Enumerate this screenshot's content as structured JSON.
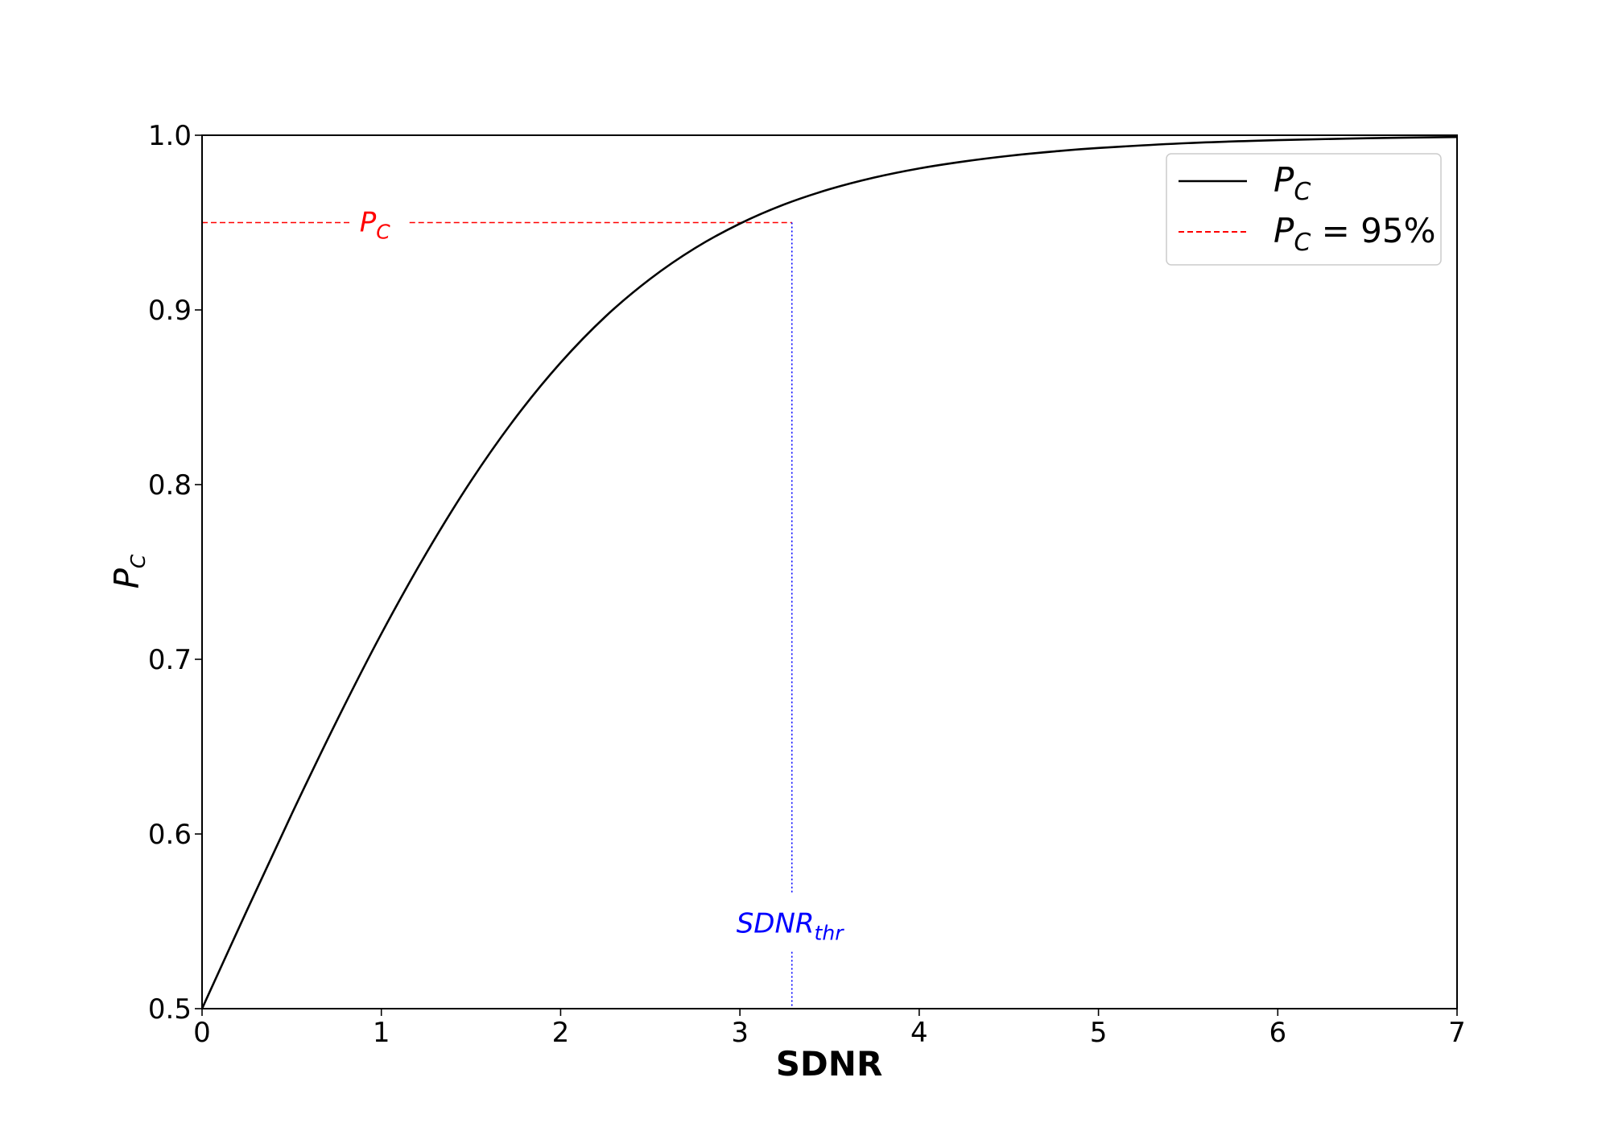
{
  "chart_data": {
    "type": "line",
    "xlabel": "SDNR",
    "ylabel": {
      "main": "P",
      "sub": "C"
    },
    "xlim": [
      0,
      7
    ],
    "ylim": [
      0.5,
      1.0
    ],
    "xticks": [
      "0",
      "1",
      "2",
      "3",
      "4",
      "5",
      "6",
      "7"
    ],
    "yticks": [
      "0.5",
      "0.6",
      "0.7",
      "0.8",
      "0.9",
      "1.0"
    ],
    "grid": false,
    "legend_placement": "top-right",
    "series": [
      {
        "legend_main": "P",
        "legend_sub": "C",
        "color": "#000000",
        "style": "solid",
        "x": [
          0,
          0.25,
          0.5,
          0.75,
          1.0,
          1.25,
          1.5,
          1.75,
          2.0,
          2.25,
          2.5,
          2.75,
          3.0,
          3.25,
          3.5,
          3.75,
          4.0,
          4.25,
          4.5,
          4.75,
          5.0,
          5.5,
          6.0,
          6.5,
          7.0
        ],
        "y": [
          0.5,
          0.5562,
          0.6114,
          0.6645,
          0.7146,
          0.7606,
          0.8021,
          0.8385,
          0.8698,
          0.8962,
          0.9178,
          0.9354,
          0.9494,
          0.9605,
          0.9691,
          0.9758,
          0.981,
          0.985,
          0.9882,
          0.9907,
          0.9927,
          0.9955,
          0.9972,
          0.9983,
          0.999
        ]
      }
    ],
    "threshold_line": {
      "legend_main": "P",
      "legend_sub": "C",
      "legend_suffix": " = 95%",
      "y": 0.95,
      "x_end": 3.29,
      "color": "#ff0000",
      "style": "dashed",
      "label_main": "P",
      "label_sub": "C",
      "label_x": 1.0
    },
    "vertical_marker": {
      "x": 3.29,
      "color": "#0000ff",
      "style": "dotted",
      "label_main": "SDNR",
      "label_sub": "thr",
      "label_y": 0.55
    }
  }
}
